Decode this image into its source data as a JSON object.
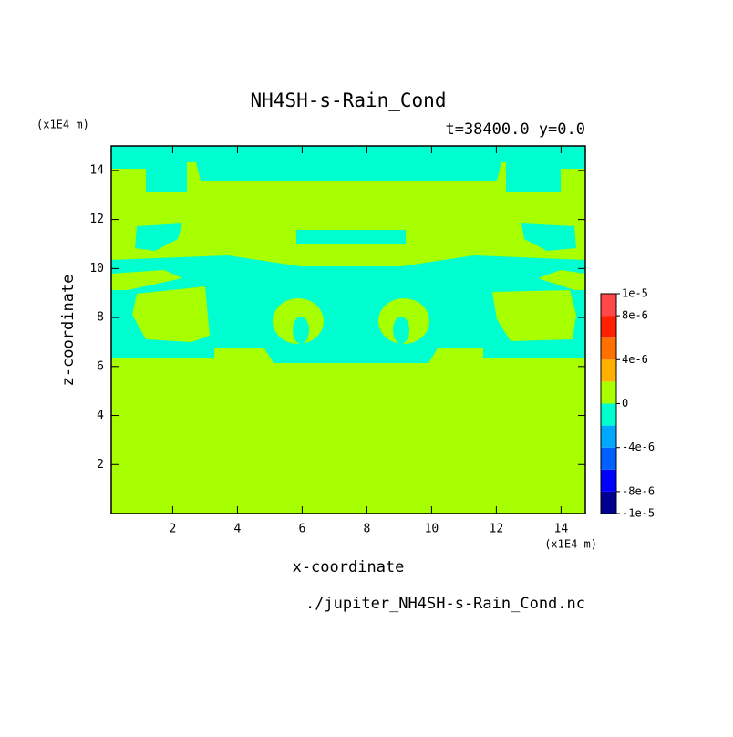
{
  "chart_data": {
    "type": "contour",
    "title": "NH4SH-s-Rain_Cond",
    "subtitle": "t=38400.0 y=0.0",
    "x_label": "x-coordinate",
    "y_label": "z-coordinate",
    "x_unit": "(x1E4 m)",
    "y_unit": "(x1E4 m)",
    "source": "./jupiter_NH4SH-s-Rain_Cond.nc",
    "xlim": [
      0.1,
      14.75
    ],
    "ylim": [
      0,
      15
    ],
    "xticks": [
      2,
      4,
      6,
      8,
      10,
      12,
      14
    ],
    "yticks": [
      2,
      4,
      6,
      8,
      10,
      12,
      14
    ],
    "colorbar": {
      "levels": [
        -1e-05,
        -8e-06,
        -6e-06,
        -4e-06,
        -2e-06,
        0,
        2e-06,
        4e-06,
        6e-06,
        8e-06,
        1e-05
      ],
      "colors": [
        "#000090",
        "#0000ff",
        "#0060ff",
        "#00a8ff",
        "#00ffd0",
        "#a8ff00",
        "#ffb000",
        "#ff7000",
        "#ff2000",
        "#ff4848"
      ],
      "ticks": [
        {
          "value": 1e-05,
          "label": "1e-5"
        },
        {
          "value": 8e-06,
          "label": "8e-6"
        },
        {
          "value": 4e-06,
          "label": "4e-6"
        },
        {
          "value": 0,
          "label": "0"
        },
        {
          "value": -4e-06,
          "label": "-4e-6"
        },
        {
          "value": -8e-06,
          "label": "-8e-6"
        },
        {
          "value": -1e-05,
          "label": "-1e-5"
        }
      ]
    }
  }
}
